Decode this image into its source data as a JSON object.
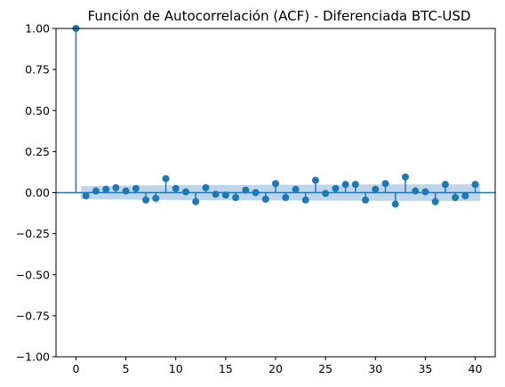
{
  "chart_data": {
    "type": "scatter",
    "title": "Función de Autocorrelación (ACF) - Diferenciada BTC-USD",
    "xlabel": "",
    "ylabel": "",
    "xlim": [
      -2.0,
      42.0
    ],
    "ylim": [
      -1.0,
      1.0
    ],
    "x_ticks": [
      0,
      5,
      10,
      15,
      20,
      25,
      30,
      35,
      40
    ],
    "y_ticks": [
      -1.0,
      -0.75,
      -0.5,
      -0.25,
      0.0,
      0.25,
      0.5,
      0.75,
      1.0
    ],
    "y_tick_labels": [
      "−1.00",
      "−0.75",
      "−0.50",
      "−0.25",
      "0.00",
      "0.25",
      "0.50",
      "0.75",
      "1.00"
    ],
    "grid": false,
    "lags": [
      0,
      1,
      2,
      3,
      4,
      5,
      6,
      7,
      8,
      9,
      10,
      11,
      12,
      13,
      14,
      15,
      16,
      17,
      18,
      19,
      20,
      21,
      22,
      23,
      24,
      25,
      26,
      27,
      28,
      29,
      30,
      31,
      32,
      33,
      34,
      35,
      36,
      37,
      38,
      39,
      40
    ],
    "values": [
      1.0,
      -0.02,
      0.01,
      0.02,
      0.03,
      0.01,
      0.025,
      -0.045,
      -0.035,
      0.085,
      0.025,
      0.005,
      -0.055,
      0.03,
      -0.01,
      -0.015,
      -0.03,
      0.015,
      0.0,
      -0.04,
      0.055,
      -0.03,
      0.02,
      -0.045,
      0.075,
      -0.005,
      0.025,
      0.05,
      0.05,
      -0.045,
      0.02,
      0.055,
      -0.07,
      0.095,
      0.01,
      0.005,
      -0.055,
      0.05,
      -0.03,
      -0.02,
      0.05
    ],
    "confidence_band": {
      "x_start": 0.5,
      "x_end": 40.5,
      "lower": [
        -0.04,
        -0.04,
        -0.042,
        -0.042,
        -0.043,
        -0.043,
        -0.044,
        -0.044,
        -0.045,
        -0.045,
        -0.046,
        -0.046,
        -0.046,
        -0.047,
        -0.047,
        -0.047,
        -0.047,
        -0.047,
        -0.048,
        -0.048,
        -0.048,
        -0.048,
        -0.048,
        -0.049,
        -0.049,
        -0.049,
        -0.049,
        -0.049,
        -0.05,
        -0.05,
        -0.05,
        -0.05,
        -0.05,
        -0.05,
        -0.051,
        -0.051,
        -0.051,
        -0.051,
        -0.051,
        -0.051
      ],
      "upper": [
        0.04,
        0.04,
        0.042,
        0.042,
        0.043,
        0.043,
        0.044,
        0.044,
        0.045,
        0.045,
        0.046,
        0.046,
        0.046,
        0.047,
        0.047,
        0.047,
        0.047,
        0.047,
        0.048,
        0.048,
        0.048,
        0.048,
        0.048,
        0.049,
        0.049,
        0.049,
        0.049,
        0.049,
        0.05,
        0.05,
        0.05,
        0.05,
        0.05,
        0.05,
        0.051,
        0.051,
        0.051,
        0.051,
        0.051,
        0.051
      ]
    },
    "colors": {
      "marker": "#1f77b4",
      "band": "#a8c8e4",
      "zero_line": "#1f77b4"
    }
  }
}
